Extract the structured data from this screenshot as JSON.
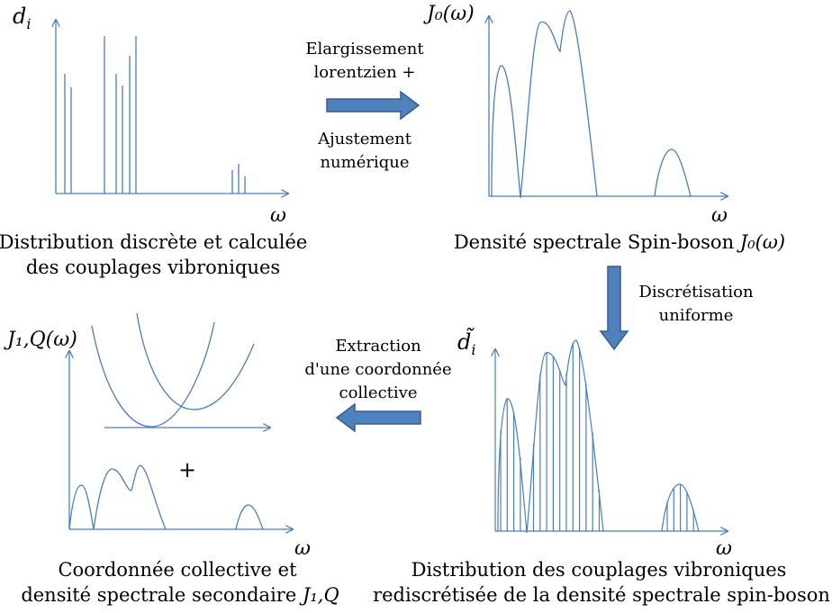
{
  "colors": {
    "line": "#4a7ebb",
    "arrow_fill": "#4f81bd",
    "arrow_stroke": "#385d8a"
  },
  "panels": {
    "p1": {
      "ylabel_base": "d",
      "ylabel_sub": "i",
      "xlabel": "ω",
      "caption_line1": "Distribution discrète et calculée",
      "caption_line2": "des couplages vibroniques"
    },
    "p2": {
      "ylabel": "J₀(ω)",
      "xlabel": "ω",
      "caption_text": "Densité spectrale Spin-boson ",
      "caption_math": "J₀(ω)"
    },
    "p3": {
      "ylabel_base": "d̃",
      "ylabel_sub": "i",
      "xlabel": "ω",
      "caption_line1": "Distribution des couplages vibroniques",
      "caption_line2": "rediscrétisée de la densité spectrale spin-boson"
    },
    "p4": {
      "ylabel": "J₁,Q(ω)",
      "xlabel": "ω",
      "plus": "+",
      "caption_line1": "Coordonnée collective et",
      "caption_line2_text": "densité spectrale secondaire ",
      "caption_line2_math": "J₁,Q"
    }
  },
  "arrows": {
    "right": {
      "line1": "Elargissement",
      "line2": "lorentzien +",
      "line3": "Ajustement",
      "line4": "numérique"
    },
    "down": {
      "line1": "Discrétisation",
      "line2": "uniforme"
    },
    "left": {
      "line1": "Extraction",
      "line2": "d'une coordonnée",
      "line3": "collective"
    }
  }
}
